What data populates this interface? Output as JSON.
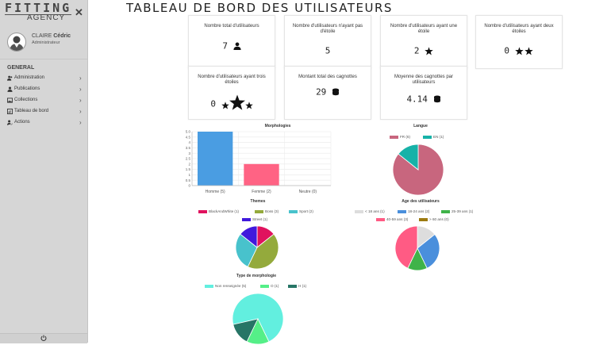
{
  "logo": {
    "line1": "FITTING",
    "line2": "AGENCY",
    "mark": "✕"
  },
  "user": {
    "first_name": "CLAIRE",
    "last_name": "Cédric",
    "role": "Administrateur"
  },
  "nav": {
    "section": "GENERAL",
    "items": [
      {
        "label": "Administration",
        "icon": "users-icon"
      },
      {
        "label": "Publications",
        "icon": "user-icon"
      },
      {
        "label": "Collections",
        "icon": "images-icon"
      },
      {
        "label": "Tableau de bord",
        "icon": "dashboard-icon"
      },
      {
        "label": "Actions",
        "icon": "user-edit-icon"
      }
    ]
  },
  "footer": {
    "icon": "power-icon"
  },
  "page_title": "TABLEAU DE BORD DES UTILISATEURS",
  "cards": [
    {
      "title": "Nombre total d'utilisateurs",
      "value": "7",
      "icon": "user-icon"
    },
    {
      "title": "Nombre d'utilisateurs n'ayant pas d'étoile",
      "value": "5",
      "icon": ""
    },
    {
      "title": "Nombre d'utilisateurs ayant une étoile",
      "value": "2",
      "icon": "star-icon"
    },
    {
      "title": "Nombre d'utilisateurs ayant deux étoiles",
      "value": "0",
      "icon": "two-stars-icon"
    },
    {
      "title": "Nombre d'utilisateurs ayant trois étoiles",
      "value": "0",
      "icon": "three-stars-icon"
    },
    {
      "title": "Montant total des cagnottes",
      "value": "29",
      "icon": "coins-icon"
    },
    {
      "title": "Moyenne des cagnottes par utilisateurs",
      "value": "4.14",
      "icon": "coins-icon"
    }
  ],
  "chart_data": [
    {
      "type": "bar",
      "title": "Morphologies",
      "categories": [
        "Homme (5)",
        "Femme (2)",
        "Neutre (0)"
      ],
      "values": [
        5,
        2,
        0
      ],
      "colors": [
        "#4a9de2",
        "#ff6384",
        "#cccccc"
      ],
      "ylim": [
        0,
        5
      ],
      "yticks": [
        "0",
        "0.5",
        "1",
        "1.5",
        "2",
        "2.5",
        "3",
        "3.5",
        "4",
        "4.5",
        "5.0"
      ],
      "grid": true
    },
    {
      "type": "pie",
      "title": "Langue",
      "labels": [
        "FR (6)",
        "EN (1)"
      ],
      "values": [
        6,
        1
      ],
      "colors": [
        "#c8667e",
        "#17b2a8"
      ]
    },
    {
      "type": "pie",
      "title": "Themes",
      "labels": [
        "BlackAndWhite (1)",
        "Boss (3)",
        "Sport (2)",
        "Street (1)"
      ],
      "values": [
        1,
        3,
        2,
        1
      ],
      "colors": [
        "#e0125e",
        "#94aa3c",
        "#48c2cc",
        "#4019dc"
      ]
    },
    {
      "type": "pie",
      "title": "Age des utilisateurs",
      "labels": [
        "< 18 ans (1)",
        "18-24 ans (2)",
        "25-39 ans (1)",
        "40-59 ans (3)",
        "> 60 ans (0)"
      ],
      "values": [
        1,
        2,
        1,
        3,
        0
      ],
      "colors": [
        "#dddddd",
        "#4a8fdc",
        "#3fb349",
        "#ff5b84",
        "#9c7a10"
      ]
    },
    {
      "type": "pie",
      "title": "Type de morphologie",
      "labels": [
        "Non renseignée (5)",
        "O (1)",
        "H (1)"
      ],
      "values": [
        5,
        1,
        1
      ],
      "colors": [
        "#62efdf",
        "#55ef88",
        "#277566"
      ]
    }
  ]
}
